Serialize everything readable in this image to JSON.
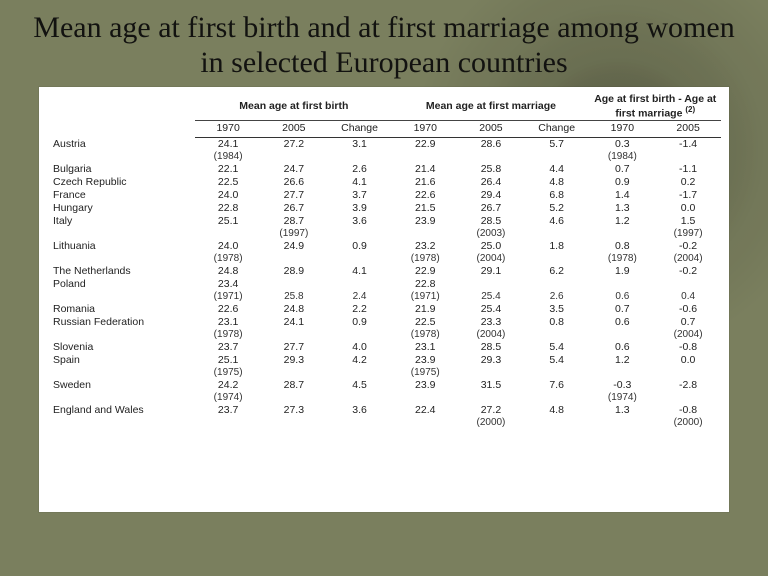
{
  "title": "Mean age at first birth and at first marriage among women in selected European countries",
  "groups": {
    "g1": "Mean age at first birth",
    "g2": "Mean age at first marriage",
    "g3_a": "Age at first birth - Age at",
    "g3_b": "first marriage",
    "g3_sup": "(2)"
  },
  "subheaders": {
    "y1970": "1970",
    "y2005": "2005",
    "change": "Change"
  },
  "rows": [
    {
      "country": "Austria",
      "b1970": "24.1",
      "b2005": "27.2",
      "bch": "3.1",
      "m1970": "22.9",
      "m2005": "28.6",
      "mch": "5.7",
      "d1970": "0.3",
      "d2005": "-1.4",
      "n_b1970": "(1984)",
      "n_d1970": "(1984)"
    },
    {
      "country": "Bulgaria",
      "b1970": "22.1",
      "b2005": "24.7",
      "bch": "2.6",
      "m1970": "21.4",
      "m2005": "25.8",
      "mch": "4.4",
      "d1970": "0.7",
      "d2005": "-1.1"
    },
    {
      "country": "Czech Republic",
      "b1970": "22.5",
      "b2005": "26.6",
      "bch": "4.1",
      "m1970": "21.6",
      "m2005": "26.4",
      "mch": "4.8",
      "d1970": "0.9",
      "d2005": "0.2"
    },
    {
      "country": "France",
      "b1970": "24.0",
      "b2005": "27.7",
      "bch": "3.7",
      "m1970": "22.6",
      "m2005": "29.4",
      "mch": "6.8",
      "d1970": "1.4",
      "d2005": "-1.7"
    },
    {
      "country": "Hungary",
      "b1970": "22.8",
      "b2005": "26.7",
      "bch": "3.9",
      "m1970": "21.5",
      "m2005": "26.7",
      "mch": "5.2",
      "d1970": "1.3",
      "d2005": "0.0"
    },
    {
      "country": "Italy",
      "b1970": "25.1",
      "b2005": "28.7",
      "bch": "3.6",
      "m1970": "23.9",
      "m2005": "28.5",
      "mch": "4.6",
      "d1970": "1.2",
      "d2005": "1.5",
      "n_b2005": "(1997)",
      "n_m2005": "(2003)",
      "n_d2005": "(1997)"
    },
    {
      "country": "Lithuania",
      "b1970": "24.0",
      "b2005": "24.9",
      "bch": "0.9",
      "m1970": "23.2",
      "m2005": "25.0",
      "mch": "1.8",
      "d1970": "0.8",
      "d2005": "-0.2",
      "n_b1970": "(1978)",
      "n_m1970": "(1978)",
      "n_m2005": "(2004)",
      "n_d1970": "(1978)",
      "n_d2005": "(2004)"
    },
    {
      "country": "The Netherlands",
      "b1970": "24.8",
      "b2005": "28.9",
      "bch": "4.1",
      "m1970": "22.9",
      "m2005": "29.1",
      "mch": "6.2",
      "d1970": "1.9",
      "d2005": "-0.2"
    },
    {
      "country": "Poland",
      "b1970": "23.4",
      "b2005": "",
      "bch": "",
      "m1970": "22.8",
      "m2005": "",
      "mch": "",
      "d1970": "",
      "d2005": "",
      "n_b1970": "(1971)",
      "n_m1970": "(1971)",
      "b2005_next": "25.8",
      "bch_next": "2.4",
      "m2005_next": "25.4",
      "mch_next": "2.6",
      "d1970_next": "0.6",
      "d2005_next": "0.4"
    },
    {
      "country": "Romania",
      "b1970": "22.6",
      "b2005": "24.8",
      "bch": "2.2",
      "m1970": "21.9",
      "m2005": "25.4",
      "mch": "3.5",
      "d1970": "0.7",
      "d2005": "-0.6"
    },
    {
      "country": "Russian Federation",
      "b1970": "23.1",
      "b2005": "24.1",
      "bch": "0.9",
      "m1970": "22.5",
      "m2005": "23.3",
      "mch": "0.8",
      "d1970": "0.6",
      "d2005": "0.7",
      "n_b1970": "(1978)",
      "n_m1970": "(1978)",
      "n_m2005": "(2004)",
      "n_d2005": "(2004)"
    },
    {
      "country": "Slovenia",
      "b1970": "23.7",
      "b2005": "27.7",
      "bch": "4.0",
      "m1970": "23.1",
      "m2005": "28.5",
      "mch": "5.4",
      "d1970": "0.6",
      "d2005": "-0.8"
    },
    {
      "country": "Spain",
      "b1970": "25.1",
      "b2005": "29.3",
      "bch": "4.2",
      "m1970": "23.9",
      "m2005": "29.3",
      "mch": "5.4",
      "d1970": "1.2",
      "d2005": "0.0",
      "n_b1970": "(1975)",
      "n_m1970": "(1975)"
    },
    {
      "country": "Sweden",
      "b1970": "24.2",
      "b2005": "28.7",
      "bch": "4.5",
      "m1970": "23.9",
      "m2005": "31.5",
      "mch": "7.6",
      "d1970": "-0.3",
      "d2005": "-2.8",
      "n_b1970": "(1974)",
      "n_d1970": "(1974)"
    },
    {
      "country": "England and Wales",
      "b1970": "23.7",
      "b2005": "27.3",
      "bch": "3.6",
      "m1970": "22.4",
      "m2005": "27.2",
      "mch": "4.8",
      "d1970": "1.3",
      "d2005": "-0.8",
      "n_m2005": "(2000)",
      "n_d2005": "(2000)"
    }
  ],
  "style": {
    "bg_color": "#7a7f5e",
    "panel_bg": "#ffffff",
    "title_font": "Georgia",
    "title_size_pt": 23,
    "table_font": "Arial",
    "table_size_pt": 8,
    "rule_color": "#333333"
  }
}
